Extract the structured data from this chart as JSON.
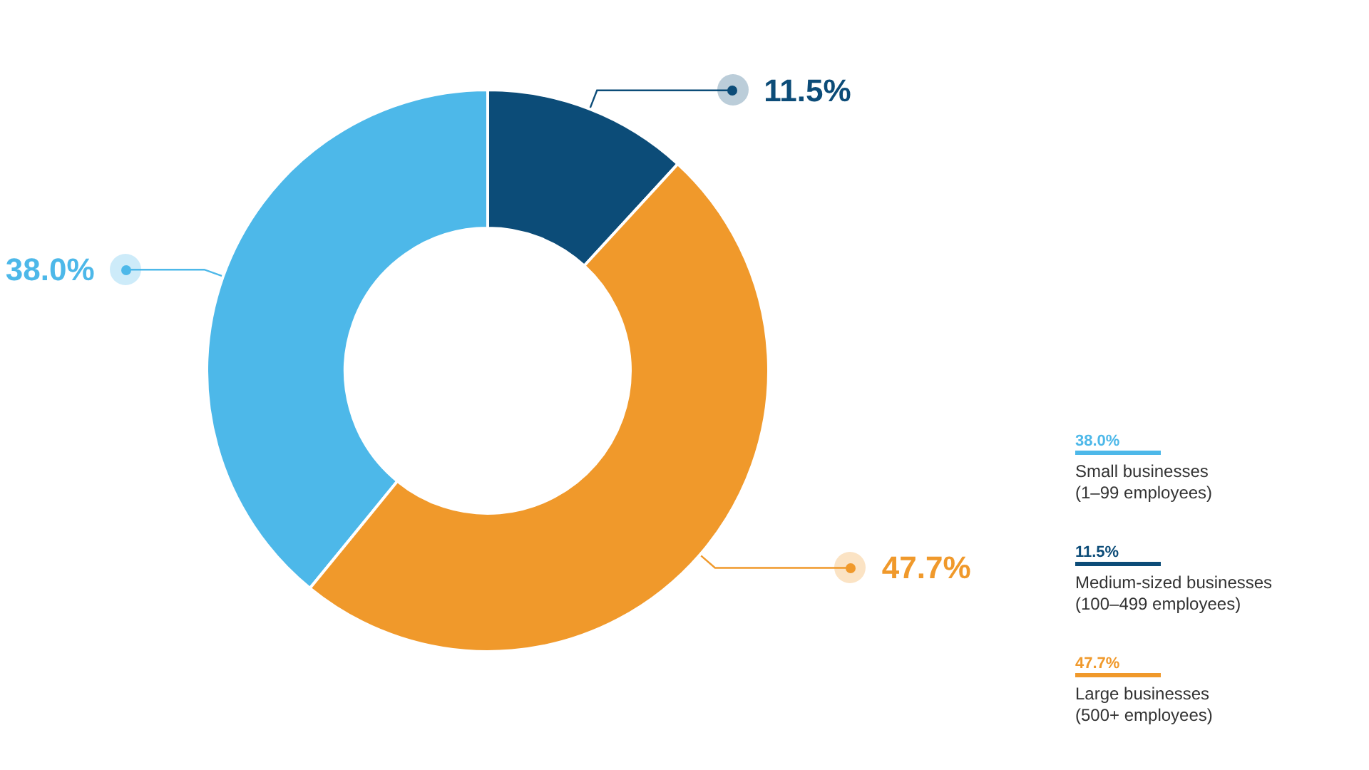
{
  "chart_data": {
    "type": "donut",
    "categories": [
      "Small businesses\n(1–99 employees)",
      "Medium-sized businesses\n(100–499 employees)",
      "Large businesses\n(500+ employees)"
    ],
    "values": [
      38.0,
      11.5,
      47.7
    ],
    "colors": [
      "#4db8e9",
      "#0c4c78",
      "#f0992b"
    ],
    "value_labels": [
      "38.0%",
      "11.5%",
      "47.7%"
    ],
    "legend": "right"
  }
}
